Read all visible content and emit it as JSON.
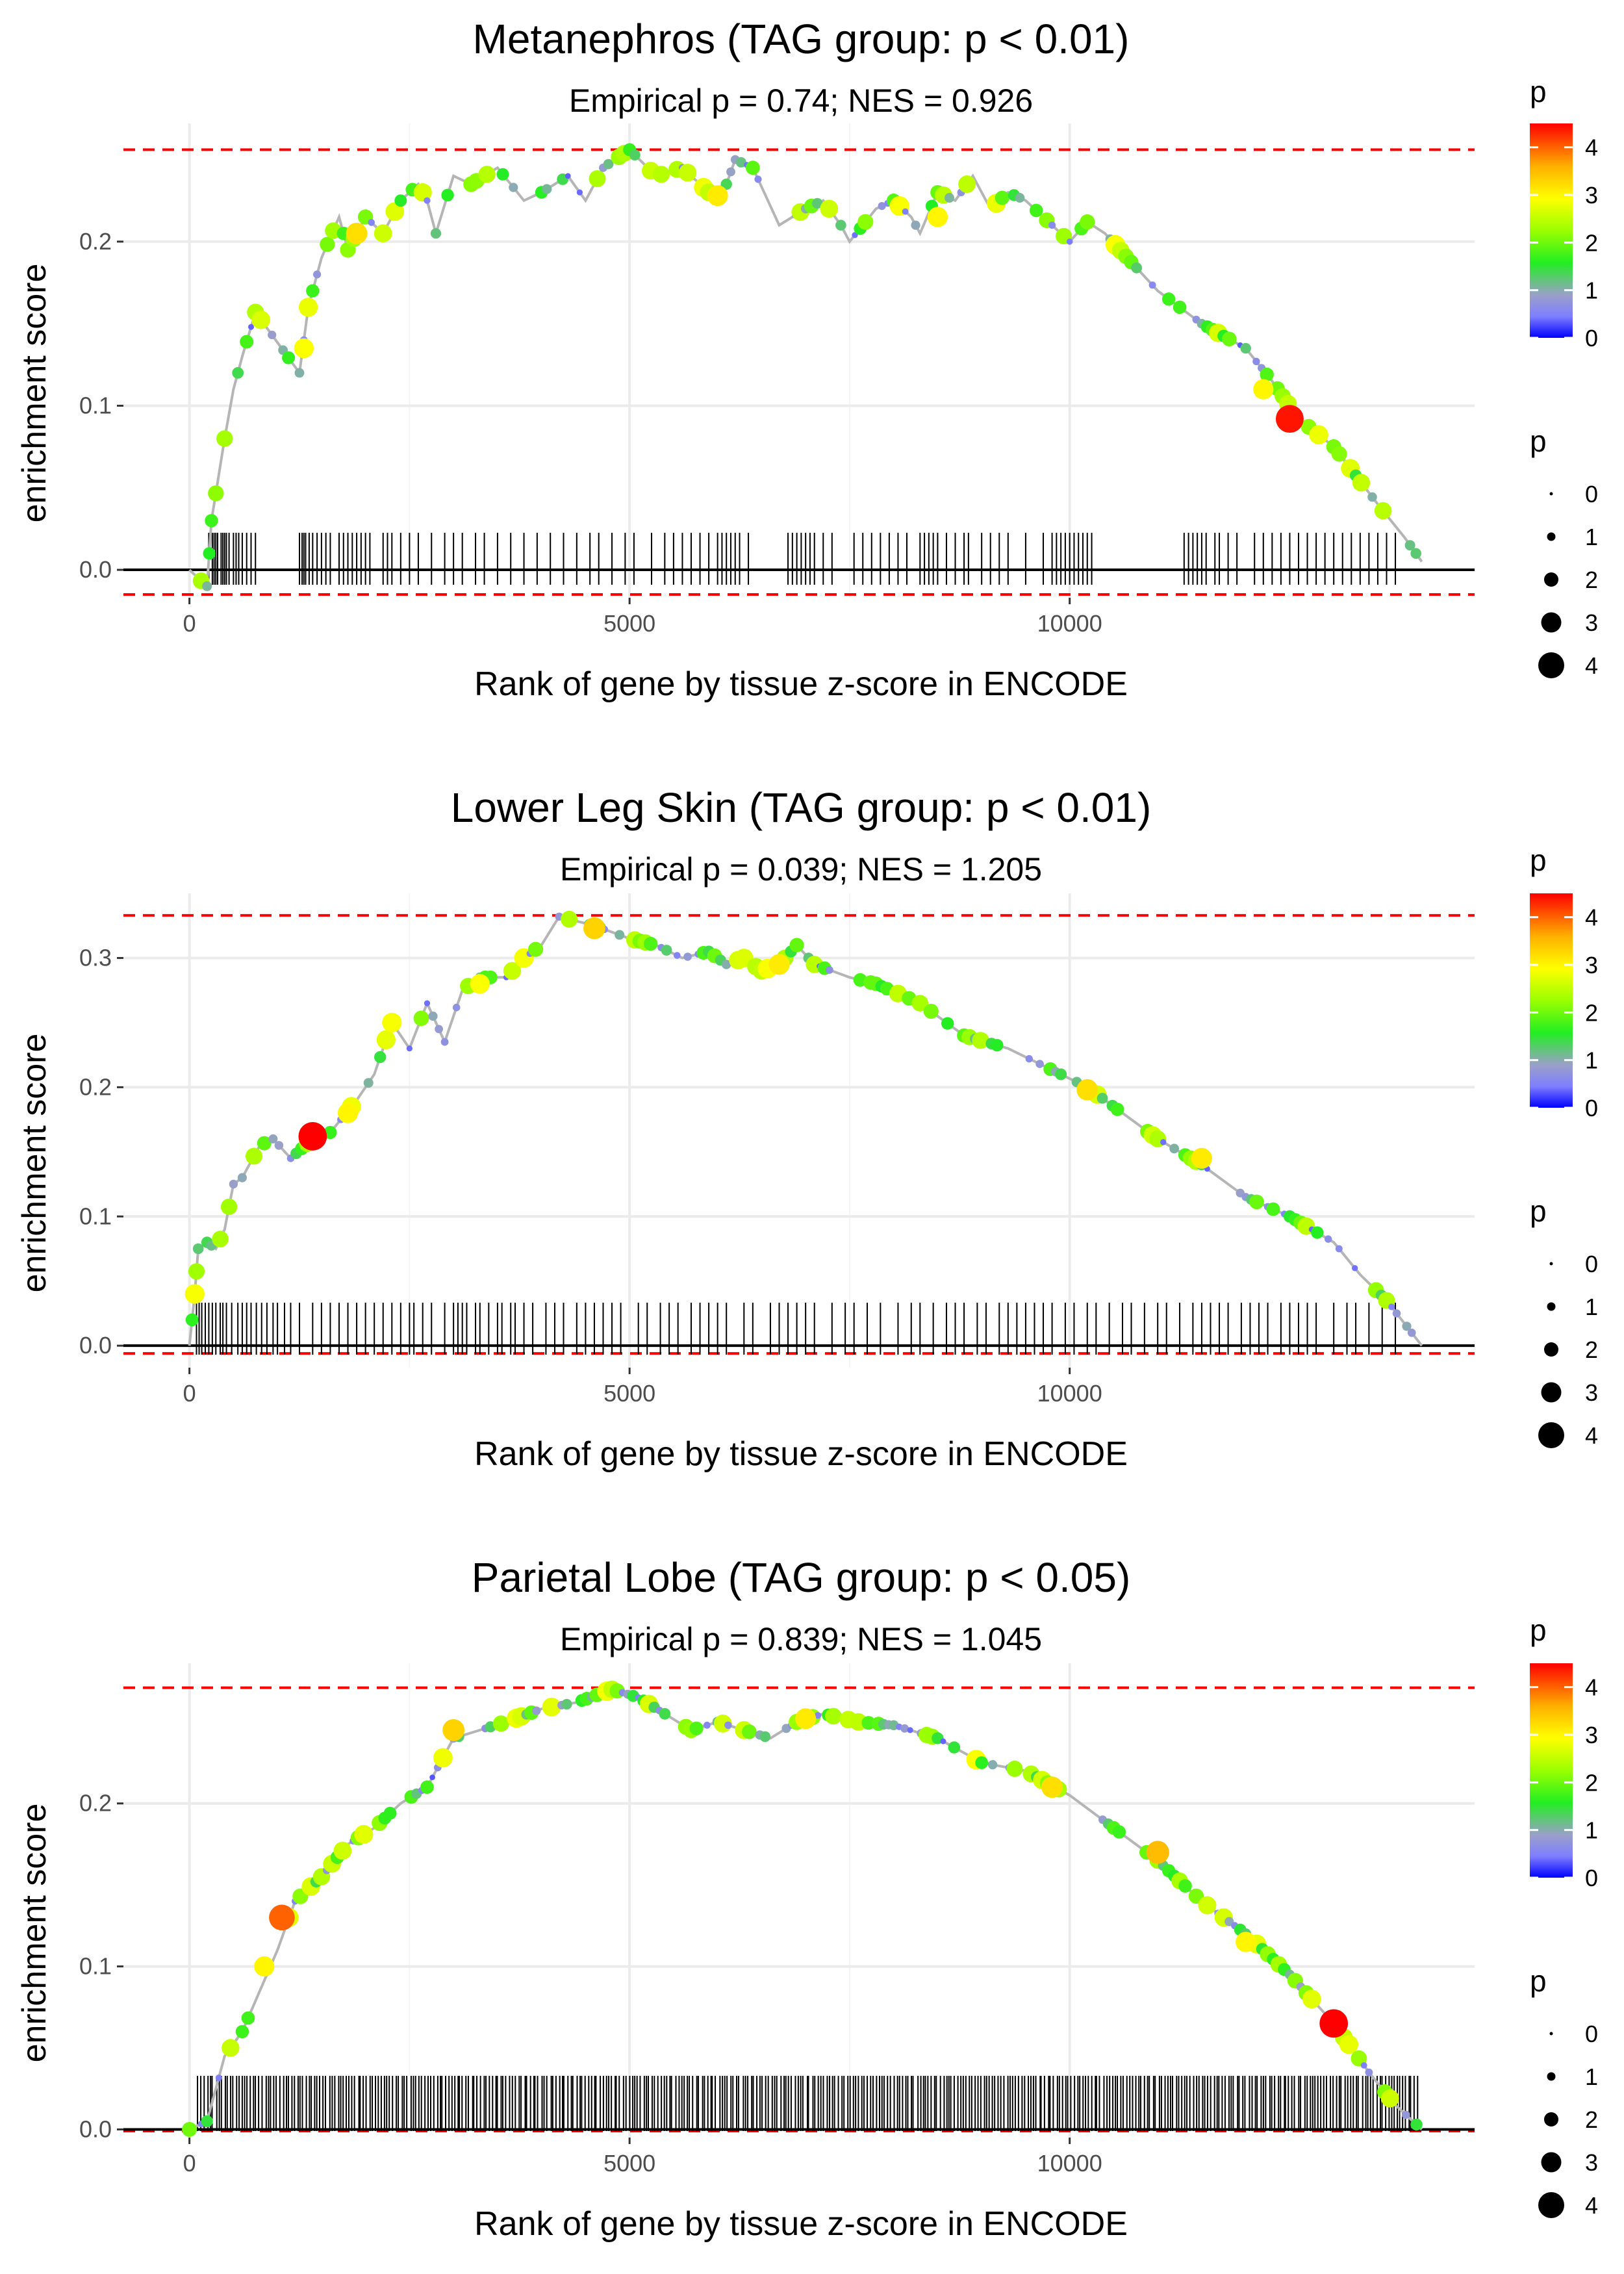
{
  "panels": [
    {
      "title": "Metanephros (TAG group: p < 0.01)",
      "subtitle": "Empirical p = 0.74; NES = 0.926",
      "legend_color_title": "p",
      "legend_size_title": "p"
    },
    {
      "title": "Lower Leg Skin (TAG group: p < 0.01)",
      "subtitle": "Empirical p = 0.039; NES = 1.205",
      "legend_color_title": "p",
      "legend_size_title": "p"
    },
    {
      "title": "Parietal Lobe (TAG group: p < 0.05)",
      "subtitle": "Empirical p = 0.839; NES = 1.045",
      "legend_color_title": "p",
      "legend_size_title": "p"
    }
  ],
  "chart_data": [
    {
      "type": "line",
      "title": "Metanephros (TAG group: p < 0.01)",
      "subtitle": "Empirical p = 0.74; NES = 0.926",
      "xlabel": "Rank of gene by tissue z-score in ENCODE",
      "ylabel": "enrichment score",
      "xlim": [
        -750,
        14600
      ],
      "ylim": [
        -0.017,
        0.272
      ],
      "xticks": [
        0,
        5000,
        10000
      ],
      "xtick_labels": [
        "0",
        "5000",
        "10000"
      ],
      "yticks": [
        0.0,
        0.1,
        0.2
      ],
      "ytick_labels": [
        "0.0",
        "0.1",
        "0.2"
      ],
      "max_line": 0.256,
      "min_line": -0.015,
      "color_legend_ticks": [
        "4",
        "3",
        "2",
        "1",
        "0"
      ],
      "size_legend_labels": [
        "0",
        "1",
        "2",
        "3",
        "4"
      ],
      "curve": [
        [
          0,
          0.0
        ],
        [
          200,
          -0.01
        ],
        [
          250,
          0.03
        ],
        [
          400,
          0.08
        ],
        [
          500,
          0.11
        ],
        [
          600,
          0.13
        ],
        [
          750,
          0.157
        ],
        [
          1250,
          0.12
        ],
        [
          1350,
          0.16
        ],
        [
          1500,
          0.19
        ],
        [
          1700,
          0.215
        ],
        [
          1800,
          0.195
        ],
        [
          2000,
          0.215
        ],
        [
          2200,
          0.205
        ],
        [
          2400,
          0.225
        ],
        [
          2600,
          0.235
        ],
        [
          2700,
          0.225
        ],
        [
          2800,
          0.205
        ],
        [
          3000,
          0.24
        ],
        [
          3200,
          0.235
        ],
        [
          3500,
          0.245
        ],
        [
          3800,
          0.225
        ],
        [
          4000,
          0.23
        ],
        [
          4300,
          0.24
        ],
        [
          4500,
          0.225
        ],
        [
          4700,
          0.245
        ],
        [
          5000,
          0.256
        ],
        [
          5300,
          0.24
        ],
        [
          5600,
          0.245
        ],
        [
          5900,
          0.23
        ],
        [
          6100,
          0.235
        ],
        [
          6200,
          0.25
        ],
        [
          6400,
          0.245
        ],
        [
          6700,
          0.21
        ],
        [
          7000,
          0.22
        ],
        [
          7200,
          0.225
        ],
        [
          7400,
          0.21
        ],
        [
          7500,
          0.2
        ],
        [
          7800,
          0.22
        ],
        [
          8000,
          0.225
        ],
        [
          8200,
          0.215
        ],
        [
          8300,
          0.205
        ],
        [
          8500,
          0.23
        ],
        [
          8700,
          0.225
        ],
        [
          8900,
          0.24
        ],
        [
          9100,
          0.22
        ],
        [
          9300,
          0.23
        ],
        [
          9500,
          0.225
        ],
        [
          9800,
          0.21
        ],
        [
          10000,
          0.2
        ],
        [
          10200,
          0.212
        ],
        [
          10400,
          0.205
        ],
        [
          11000,
          0.17
        ],
        [
          11500,
          0.15
        ],
        [
          12000,
          0.135
        ],
        [
          12300,
          0.115
        ],
        [
          12600,
          0.092
        ],
        [
          13000,
          0.075
        ],
        [
          13500,
          0.04
        ],
        [
          13800,
          0.02
        ],
        [
          14000,
          0.005
        ]
      ],
      "highlight_points": [
        [
          12500,
          0.092,
          4.4
        ],
        [
          1900,
          0.205,
          3.2
        ],
        [
          6000,
          0.228,
          3.1
        ],
        [
          8500,
          0.215,
          3.0
        ],
        [
          12200,
          0.11,
          3.0
        ],
        [
          1300,
          0.135,
          2.9
        ]
      ],
      "rug": [
        220,
        260,
        280,
        300,
        320,
        360,
        380,
        400,
        420,
        450,
        500,
        530,
        560,
        600,
        650,
        700,
        750,
        1250,
        1280,
        1300,
        1320,
        1360,
        1400,
        1450,
        1500,
        1550,
        1600,
        1700,
        1750,
        1800,
        1850,
        1900,
        1950,
        2000,
        2050,
        2200,
        2250,
        2300,
        2400,
        2500,
        2600,
        2750,
        2900,
        3000,
        3100,
        3250,
        3350,
        3500,
        3650,
        3800,
        3950,
        4100,
        4250,
        4400,
        4550,
        4650,
        4800,
        4950,
        5050,
        5250,
        5400,
        5500,
        5600,
        5700,
        5800,
        5900,
        6000,
        6050,
        6100,
        6150,
        6200,
        6250,
        6350,
        6800,
        6850,
        6900,
        6950,
        7000,
        7050,
        7100,
        7200,
        7300,
        7550,
        7650,
        7750,
        7850,
        7950,
        8050,
        8150,
        8300,
        8350,
        8400,
        8450,
        8500,
        8600,
        8700,
        8800,
        8850,
        9000,
        9100,
        9200,
        9300,
        9500,
        9700,
        9800,
        9850,
        9900,
        9950,
        10000,
        10050,
        10100,
        10150,
        10200,
        10250,
        11300,
        11350,
        11400,
        11450,
        11500,
        11550,
        11650,
        11700,
        11800,
        11900,
        12100,
        12200,
        12300,
        12400,
        12500,
        12600,
        12700,
        12800,
        12900,
        13000,
        13100,
        13200,
        13300,
        13400,
        13500,
        13600,
        13700
      ]
    },
    {
      "type": "line",
      "title": "Lower Leg Skin (TAG group: p < 0.01)",
      "subtitle": "Empirical p = 0.039; NES = 1.205",
      "xlabel": "Rank of gene by tissue z-score in ENCODE",
      "ylabel": "enrichment score",
      "xlim": [
        -750,
        14600
      ],
      "ylim": [
        -0.017,
        0.35
      ],
      "xticks": [
        0,
        5000,
        10000
      ],
      "xtick_labels": [
        "0",
        "5000",
        "10000"
      ],
      "yticks": [
        0.0,
        0.1,
        0.2,
        0.3
      ],
      "ytick_labels": [
        "0.0",
        "0.1",
        "0.2",
        "0.3"
      ],
      "max_line": 0.333,
      "min_line": -0.006,
      "color_legend_ticks": [
        "4",
        "3",
        "2",
        "1",
        "0"
      ],
      "size_legend_labels": [
        "0",
        "1",
        "2",
        "3",
        "4"
      ],
      "curve": [
        [
          0,
          0.0
        ],
        [
          60,
          0.04
        ],
        [
          100,
          0.075
        ],
        [
          200,
          0.08
        ],
        [
          300,
          0.075
        ],
        [
          400,
          0.09
        ],
        [
          500,
          0.125
        ],
        [
          600,
          0.13
        ],
        [
          800,
          0.155
        ],
        [
          950,
          0.16
        ],
        [
          1150,
          0.145
        ],
        [
          1400,
          0.16
        ],
        [
          1600,
          0.165
        ],
        [
          1900,
          0.19
        ],
        [
          2100,
          0.21
        ],
        [
          2300,
          0.25
        ],
        [
          2500,
          0.23
        ],
        [
          2700,
          0.265
        ],
        [
          2900,
          0.235
        ],
        [
          3100,
          0.275
        ],
        [
          3300,
          0.285
        ],
        [
          3600,
          0.285
        ],
        [
          3800,
          0.3
        ],
        [
          4000,
          0.31
        ],
        [
          4200,
          0.332
        ],
        [
          4600,
          0.325
        ],
        [
          5000,
          0.315
        ],
        [
          5300,
          0.31
        ],
        [
          5600,
          0.3
        ],
        [
          5900,
          0.305
        ],
        [
          6100,
          0.295
        ],
        [
          6300,
          0.3
        ],
        [
          6500,
          0.29
        ],
        [
          6700,
          0.295
        ],
        [
          6900,
          0.31
        ],
        [
          7100,
          0.295
        ],
        [
          7500,
          0.285
        ],
        [
          7800,
          0.28
        ],
        [
          8300,
          0.265
        ],
        [
          8800,
          0.24
        ],
        [
          9300,
          0.23
        ],
        [
          9600,
          0.22
        ],
        [
          10200,
          0.2
        ],
        [
          10600,
          0.18
        ],
        [
          11000,
          0.16
        ],
        [
          11500,
          0.14
        ],
        [
          12000,
          0.115
        ],
        [
          12500,
          0.1
        ],
        [
          13000,
          0.08
        ],
        [
          13300,
          0.055
        ],
        [
          13600,
          0.035
        ],
        [
          14000,
          0.0
        ]
      ],
      "highlight_points": [
        [
          1400,
          0.162,
          4.5
        ],
        [
          4600,
          0.323,
          3.3
        ],
        [
          6700,
          0.295,
          3.1
        ],
        [
          10200,
          0.198,
          3.2
        ],
        [
          11500,
          0.145,
          3.1
        ],
        [
          3300,
          0.28,
          2.9
        ],
        [
          1800,
          0.18,
          3.0
        ]
      ],
      "rug": [
        80,
        110,
        140,
        180,
        220,
        260,
        300,
        350,
        380,
        420,
        480,
        550,
        600,
        650,
        700,
        760,
        820,
        880,
        950,
        1000,
        1080,
        1150,
        1250,
        1400,
        1500,
        1600,
        1700,
        1800,
        1900,
        2000,
        2100,
        2200,
        2300,
        2400,
        2500,
        2550,
        2650,
        2750,
        2900,
        3000,
        3050,
        3100,
        3150,
        3250,
        3300,
        3400,
        3500,
        3550,
        3650,
        3700,
        3800,
        3900,
        4050,
        4150,
        4250,
        4400,
        4500,
        4600,
        4700,
        4800,
        4900,
        5100,
        5200,
        5350,
        5450,
        5550,
        5700,
        5800,
        5900,
        6000,
        6100,
        6300,
        6400,
        6600,
        6700,
        6800,
        6900,
        7000,
        7100,
        7300,
        7450,
        7550,
        7700,
        7850,
        8050,
        8200,
        8300,
        8450,
        8600,
        8700,
        8800,
        8950,
        9050,
        9200,
        9300,
        9400,
        9500,
        9600,
        9700,
        9800,
        9950,
        10050,
        10200,
        10300,
        10450,
        10600,
        10700,
        10850,
        11000,
        11100,
        11250,
        11400,
        11500,
        11600,
        11700,
        11800,
        11950,
        12050,
        12150,
        12250,
        12400,
        12500,
        12600,
        12700,
        12800,
        13000,
        13150,
        13250,
        13400,
        13550,
        13700
      ]
    },
    {
      "type": "line",
      "title": "Parietal Lobe (TAG group: p < 0.05)",
      "subtitle": "Empirical p = 0.839; NES = 1.045",
      "xlabel": "Rank of gene by tissue z-score in ENCODE",
      "ylabel": "enrichment score",
      "xlim": [
        -750,
        14600
      ],
      "ylim": [
        -0.005,
        0.286
      ],
      "xticks": [
        0,
        5000,
        10000
      ],
      "xtick_labels": [
        "0",
        "5000",
        "10000"
      ],
      "yticks": [
        0.0,
        0.1,
        0.2
      ],
      "ytick_labels": [
        "0.0",
        "0.1",
        "0.2"
      ],
      "max_line": 0.271,
      "min_line": -0.001,
      "color_legend_ticks": [
        "4",
        "3",
        "2",
        "1",
        "0"
      ],
      "size_legend_labels": [
        "0",
        "1",
        "2",
        "3",
        "4"
      ],
      "curve": [
        [
          0,
          0.0
        ],
        [
          200,
          0.005
        ],
        [
          400,
          0.045
        ],
        [
          600,
          0.06
        ],
        [
          800,
          0.085
        ],
        [
          1000,
          0.11
        ],
        [
          1200,
          0.14
        ],
        [
          1500,
          0.155
        ],
        [
          1800,
          0.175
        ],
        [
          2100,
          0.185
        ],
        [
          2400,
          0.2
        ],
        [
          2700,
          0.21
        ],
        [
          3000,
          0.24
        ],
        [
          3300,
          0.245
        ],
        [
          3600,
          0.25
        ],
        [
          4000,
          0.258
        ],
        [
          4400,
          0.262
        ],
        [
          4800,
          0.27
        ],
        [
          5100,
          0.265
        ],
        [
          5400,
          0.255
        ],
        [
          5700,
          0.245
        ],
        [
          6000,
          0.25
        ],
        [
          6300,
          0.245
        ],
        [
          6600,
          0.24
        ],
        [
          6900,
          0.25
        ],
        [
          7200,
          0.255
        ],
        [
          7600,
          0.25
        ],
        [
          8000,
          0.248
        ],
        [
          8500,
          0.24
        ],
        [
          9000,
          0.225
        ],
        [
          9500,
          0.22
        ],
        [
          10000,
          0.205
        ],
        [
          10500,
          0.185
        ],
        [
          11000,
          0.165
        ],
        [
          11500,
          0.14
        ],
        [
          12000,
          0.12
        ],
        [
          12500,
          0.095
        ],
        [
          13000,
          0.065
        ],
        [
          13400,
          0.035
        ],
        [
          13700,
          0.015
        ],
        [
          14000,
          0.0
        ]
      ],
      "highlight_points": [
        [
          13000,
          0.065,
          4.5
        ],
        [
          1050,
          0.13,
          4.0
        ],
        [
          11000,
          0.17,
          3.5
        ],
        [
          3000,
          0.245,
          3.3
        ],
        [
          7000,
          0.252,
          3.1
        ],
        [
          9800,
          0.21,
          3.2
        ],
        [
          12000,
          0.115,
          3.0
        ],
        [
          850,
          0.1,
          3.0
        ]
      ],
      "rug_start": 100,
      "rug_end": 13950,
      "rug_count": 420
    }
  ]
}
